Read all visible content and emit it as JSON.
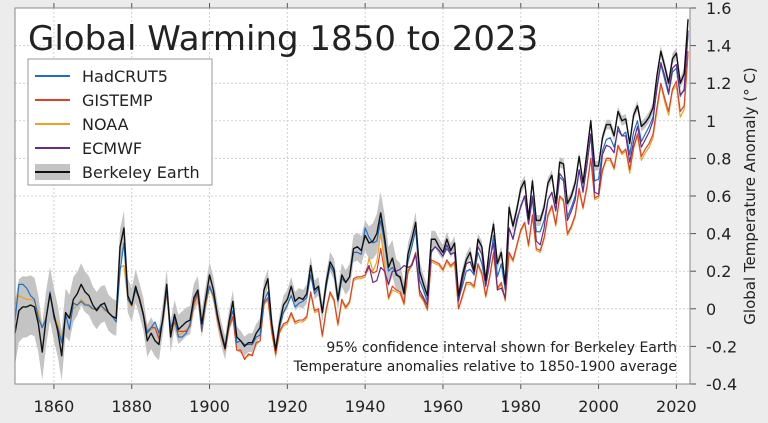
{
  "chart_data": {
    "type": "line",
    "title": "Global Warming 1850 to 2023",
    "xlabel": "",
    "ylabel": "Global Temperature Anomaly (° C)",
    "xlim": [
      1850,
      2023.5
    ],
    "ylim": [
      -0.4,
      1.6
    ],
    "xticks": [
      1860,
      1880,
      1900,
      1920,
      1940,
      1960,
      1980,
      2000,
      2020
    ],
    "yticks": [
      -0.4,
      -0.2,
      0,
      0.2,
      0.4,
      0.6,
      0.8,
      1,
      1.2,
      1.4,
      1.6
    ],
    "ytick_labels": [
      "-0.4",
      "-0.2",
      "0",
      "0.2",
      "0.4",
      "0.6",
      "0.8",
      "1",
      "1.2",
      "1.4",
      "1.6"
    ],
    "grid": true,
    "legend_placement": "top-left",
    "annotations": [
      "95% confidence interval shown for Berkeley Earth",
      "Temperature anomalies relative to 1850-1900 average"
    ],
    "confidence_band": {
      "series": "Berkeley Earth",
      "color": "#c4c4c4",
      "years": [
        1850,
        1860,
        1870,
        1880,
        1890,
        1900,
        1910,
        1920,
        1930,
        1940,
        1945,
        1950,
        1960,
        1970,
        1980,
        2000,
        2023
      ],
      "halfwidth": [
        0.17,
        0.14,
        0.1,
        0.09,
        0.08,
        0.07,
        0.05,
        0.05,
        0.05,
        0.08,
        0.12,
        0.06,
        0.04,
        0.03,
        0.03,
        0.025,
        0.03
      ]
    },
    "series": [
      {
        "name": "HadCRUT5",
        "color": "#1f6fc6",
        "start": 1850,
        "values": [
          -0.06,
          0.13,
          0.13,
          0.11,
          0.07,
          0.05,
          -0.05,
          -0.1,
          -0.05,
          0.09,
          -0.05,
          -0.1,
          -0.18,
          -0.03,
          -0.11,
          0.03,
          0.02,
          0.04,
          0.02,
          0.02,
          0.0,
          0.0,
          0.02,
          0.0,
          -0.02,
          -0.04,
          -0.07,
          0.2,
          0.35,
          0.05,
          0.02,
          0.1,
          0.05,
          -0.04,
          -0.13,
          -0.1,
          -0.07,
          -0.13,
          -0.06,
          0.1,
          -0.1,
          -0.05,
          -0.15,
          -0.15,
          -0.13,
          -0.08,
          0.05,
          0.09,
          -0.11,
          0.04,
          0.12,
          0.07,
          -0.04,
          -0.12,
          -0.2,
          -0.08,
          -0.01,
          -0.18,
          -0.17,
          -0.19,
          -0.19,
          -0.19,
          -0.15,
          -0.14,
          0.04,
          0.09,
          -0.09,
          -0.21,
          -0.1,
          -0.02,
          0.02,
          0.07,
          0.01,
          0.03,
          0.04,
          0.06,
          0.18,
          0.08,
          0.11,
          -0.02,
          0.12,
          0.23,
          0.19,
          0.04,
          0.16,
          0.14,
          0.17,
          0.3,
          0.3,
          0.29,
          0.43,
          0.38,
          0.35,
          0.36,
          0.47,
          0.35,
          0.2,
          0.22,
          0.19,
          0.16,
          0.1,
          0.25,
          0.33,
          0.42,
          0.15,
          0.1,
          0.04,
          0.3,
          0.33,
          0.31,
          0.28,
          0.32,
          0.29,
          0.3,
          0.05,
          0.12,
          0.2,
          0.21,
          0.18,
          0.3,
          0.24,
          0.12,
          0.24,
          0.39,
          0.17,
          0.24,
          0.1,
          0.43,
          0.37,
          0.46,
          0.55,
          0.6,
          0.45,
          0.6,
          0.41,
          0.41,
          0.47,
          0.58,
          0.62,
          0.52,
          0.7,
          0.68,
          0.49,
          0.54,
          0.6,
          0.74,
          0.63,
          0.76,
          0.93,
          0.68,
          0.69,
          0.84,
          0.9,
          0.91,
          0.86,
          0.95,
          0.92,
          0.94,
          0.82,
          0.94,
          1.0,
          0.89,
          0.93,
          0.97,
          1.02,
          1.17,
          1.3,
          1.22,
          1.14,
          1.26,
          1.28,
          1.13,
          1.17,
          1.46
        ]
      },
      {
        "name": "GISTEMP",
        "color": "#e0402a",
        "start": 1880,
        "values": [
          0.02,
          0.11,
          0.06,
          -0.03,
          -0.12,
          -0.1,
          -0.1,
          -0.16,
          -0.06,
          0.09,
          -0.12,
          -0.07,
          -0.12,
          -0.12,
          -0.12,
          -0.09,
          0.03,
          0.08,
          -0.12,
          0.03,
          0.12,
          0.07,
          -0.05,
          -0.14,
          -0.22,
          -0.1,
          -0.04,
          -0.22,
          -0.22,
          -0.27,
          -0.24,
          -0.25,
          -0.18,
          -0.17,
          0.03,
          0.06,
          -0.12,
          -0.24,
          -0.12,
          -0.08,
          -0.07,
          -0.02,
          -0.07,
          -0.06,
          -0.06,
          -0.04,
          0.09,
          -0.01,
          0.0,
          -0.14,
          0.0,
          0.09,
          0.05,
          -0.08,
          0.05,
          0.01,
          0.04,
          0.16,
          0.17,
          0.17,
          0.18,
          0.22,
          0.19,
          0.2,
          0.32,
          0.2,
          0.06,
          0.12,
          0.1,
          0.09,
          0.03,
          0.2,
          0.24,
          0.3,
          0.08,
          0.05,
          0.0,
          0.26,
          0.25,
          0.24,
          0.21,
          0.26,
          0.23,
          0.25,
          0.0,
          0.07,
          0.14,
          0.14,
          0.12,
          0.24,
          0.19,
          0.07,
          0.17,
          0.3,
          0.11,
          0.14,
          0.05,
          0.3,
          0.26,
          0.34,
          0.42,
          0.46,
          0.34,
          0.5,
          0.32,
          0.31,
          0.38,
          0.5,
          0.55,
          0.45,
          0.6,
          0.58,
          0.4,
          0.44,
          0.5,
          0.64,
          0.54,
          0.65,
          0.8,
          0.59,
          0.6,
          0.74,
          0.8,
          0.8,
          0.75,
          0.87,
          0.83,
          0.85,
          0.74,
          0.86,
          0.93,
          0.81,
          0.85,
          0.88,
          0.93,
          1.07,
          1.2,
          1.12,
          1.05,
          1.17,
          1.21,
          1.05,
          1.08,
          1.37
        ]
      },
      {
        "name": "NOAA",
        "color": "#f0a020",
        "start": 1850,
        "values": [
          0.02,
          0.07,
          0.06,
          0.05,
          0.05,
          0.04,
          -0.02,
          -0.1,
          -0.05,
          0.08,
          -0.04,
          -0.08,
          -0.16,
          -0.04,
          -0.05,
          0.0,
          0.02,
          0.05,
          0.03,
          0.01,
          0.0,
          -0.01,
          0.02,
          -0.01,
          -0.02,
          -0.04,
          -0.05,
          0.22,
          0.23,
          0.05,
          0.01,
          0.1,
          0.05,
          -0.04,
          -0.13,
          -0.11,
          -0.1,
          -0.15,
          -0.07,
          0.09,
          -0.13,
          -0.08,
          -0.14,
          -0.13,
          -0.11,
          -0.1,
          0.02,
          0.07,
          -0.12,
          0.02,
          0.11,
          0.06,
          -0.06,
          -0.15,
          -0.21,
          -0.11,
          -0.05,
          -0.22,
          -0.23,
          -0.26,
          -0.25,
          -0.24,
          -0.19,
          -0.17,
          0.02,
          0.05,
          -0.13,
          -0.25,
          -0.13,
          -0.09,
          -0.08,
          -0.03,
          -0.08,
          -0.07,
          -0.07,
          -0.05,
          0.08,
          -0.02,
          -0.01,
          -0.15,
          -0.01,
          0.08,
          0.04,
          -0.09,
          0.04,
          0.0,
          0.03,
          0.15,
          0.16,
          0.16,
          0.17,
          0.27,
          0.2,
          0.25,
          0.4,
          0.24,
          0.05,
          0.1,
          0.09,
          0.08,
          0.02,
          0.19,
          0.23,
          0.29,
          0.07,
          0.04,
          -0.01,
          0.25,
          0.24,
          0.23,
          0.2,
          0.25,
          0.22,
          0.24,
          0.0,
          0.06,
          0.13,
          0.13,
          0.11,
          0.23,
          0.18,
          0.06,
          0.16,
          0.29,
          0.1,
          0.13,
          0.04,
          0.29,
          0.25,
          0.33,
          0.41,
          0.45,
          0.33,
          0.49,
          0.31,
          0.3,
          0.37,
          0.49,
          0.54,
          0.44,
          0.59,
          0.57,
          0.39,
          0.43,
          0.49,
          0.63,
          0.53,
          0.64,
          0.8,
          0.58,
          0.59,
          0.73,
          0.79,
          0.79,
          0.74,
          0.86,
          0.82,
          0.84,
          0.72,
          0.85,
          0.92,
          0.79,
          0.83,
          0.86,
          0.91,
          1.05,
          1.19,
          1.1,
          1.03,
          1.16,
          1.19,
          1.02,
          1.06,
          1.35
        ]
      },
      {
        "name": "ECMWF",
        "color": "#6a2a8a",
        "start": 1940,
        "values": [
          0.19,
          0.23,
          0.14,
          0.15,
          0.22,
          0.2,
          0.13,
          0.2,
          0.2,
          0.21,
          0.23,
          0.22,
          0.23,
          0.29,
          0.1,
          0.06,
          0.02,
          0.31,
          0.33,
          0.31,
          0.28,
          0.34,
          0.29,
          0.3,
          0.04,
          0.15,
          0.24,
          0.25,
          0.19,
          0.33,
          0.29,
          0.12,
          0.26,
          0.35,
          0.1,
          0.11,
          0.06,
          0.43,
          0.37,
          0.48,
          0.54,
          0.6,
          0.45,
          0.59,
          0.36,
          0.34,
          0.43,
          0.58,
          0.62,
          0.52,
          0.72,
          0.69,
          0.47,
          0.52,
          0.58,
          0.74,
          0.62,
          0.77,
          0.93,
          0.62,
          0.61,
          0.82,
          0.87,
          0.86,
          0.83,
          0.97,
          0.92,
          0.92,
          0.78,
          0.89,
          0.97,
          0.86,
          0.9,
          0.94,
          1.0,
          1.18,
          1.31,
          1.24,
          1.15,
          1.28,
          1.3,
          1.14,
          1.16,
          1.48
        ]
      },
      {
        "name": "Berkeley Earth",
        "color": "#111111",
        "start": 1850,
        "values": [
          -0.13,
          -0.01,
          0.01,
          0.01,
          0.02,
          0.01,
          -0.08,
          -0.23,
          -0.05,
          0.08,
          -0.03,
          -0.12,
          -0.25,
          -0.02,
          -0.05,
          0.05,
          0.08,
          0.13,
          0.09,
          0.07,
          0.02,
          -0.01,
          0.02,
          0.03,
          -0.02,
          -0.04,
          -0.05,
          0.33,
          0.43,
          0.07,
          0.02,
          0.12,
          0.05,
          -0.03,
          -0.17,
          -0.13,
          -0.17,
          -0.19,
          -0.05,
          0.13,
          -0.15,
          -0.03,
          -0.11,
          -0.09,
          -0.07,
          -0.06,
          0.06,
          0.1,
          -0.08,
          0.05,
          0.18,
          0.1,
          -0.03,
          -0.13,
          -0.21,
          -0.07,
          0.04,
          -0.15,
          -0.17,
          -0.2,
          -0.18,
          -0.18,
          -0.13,
          -0.1,
          0.1,
          0.16,
          -0.08,
          -0.22,
          -0.08,
          0.02,
          0.05,
          0.12,
          0.04,
          0.06,
          0.05,
          0.08,
          0.23,
          0.1,
          0.12,
          -0.02,
          0.14,
          0.25,
          0.21,
          0.05,
          0.18,
          0.14,
          0.17,
          0.32,
          0.33,
          0.31,
          0.39,
          0.35,
          0.36,
          0.4,
          0.51,
          0.38,
          0.22,
          0.27,
          0.18,
          0.17,
          0.08,
          0.29,
          0.37,
          0.46,
          0.2,
          0.13,
          0.07,
          0.37,
          0.37,
          0.33,
          0.3,
          0.37,
          0.31,
          0.35,
          0.07,
          0.18,
          0.26,
          0.3,
          0.2,
          0.37,
          0.33,
          0.15,
          0.33,
          0.45,
          0.24,
          0.3,
          0.13,
          0.54,
          0.44,
          0.53,
          0.64,
          0.68,
          0.48,
          0.68,
          0.47,
          0.47,
          0.54,
          0.67,
          0.71,
          0.56,
          0.78,
          0.77,
          0.56,
          0.6,
          0.67,
          0.81,
          0.67,
          0.83,
          1.0,
          0.76,
          0.76,
          0.91,
          0.98,
          0.98,
          0.92,
          1.05,
          1.0,
          1.01,
          0.88,
          1.03,
          1.08,
          0.97,
          0.99,
          1.02,
          1.07,
          1.24,
          1.37,
          1.29,
          1.2,
          1.33,
          1.36,
          1.2,
          1.25,
          1.54
        ]
      }
    ]
  }
}
